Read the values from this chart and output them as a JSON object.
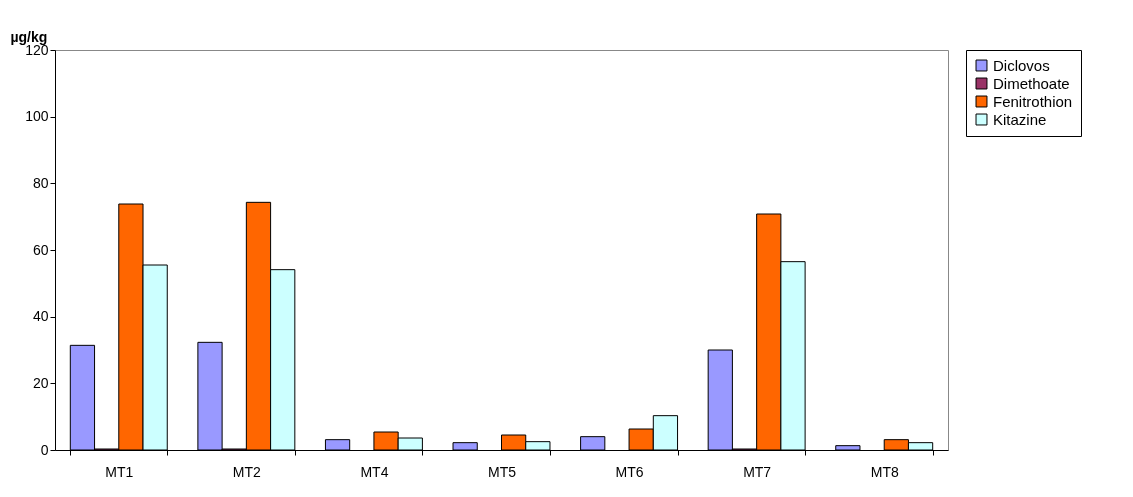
{
  "chart_data": {
    "type": "bar",
    "ylabel": "µg/kg",
    "categories": [
      "MT1",
      "MT2",
      "MT4",
      "MT5",
      "MT6",
      "MT7",
      "MT8"
    ],
    "series": [
      {
        "name": "Diclovos",
        "color": "#9999ff",
        "values": [
          31.4,
          32.3,
          3.1,
          2.2,
          4.0,
          30.0,
          1.3
        ]
      },
      {
        "name": "Dimethoate",
        "color": "#993366",
        "values": [
          0.3,
          0.3,
          null,
          null,
          null,
          0.3,
          null
        ]
      },
      {
        "name": "Fenitrothion",
        "color": "#ff6600",
        "values": [
          73.8,
          74.3,
          5.4,
          4.5,
          6.3,
          70.8,
          3.1
        ]
      },
      {
        "name": "Kitazine",
        "color": "#ccffff",
        "values": [
          55.5,
          54.1,
          3.6,
          2.5,
          10.3,
          56.5,
          2.2
        ]
      }
    ],
    "ylim": [
      0,
      120
    ],
    "yticks": [
      0,
      20,
      40,
      60,
      80,
      100,
      120
    ],
    "grid": false,
    "legend": "right"
  }
}
